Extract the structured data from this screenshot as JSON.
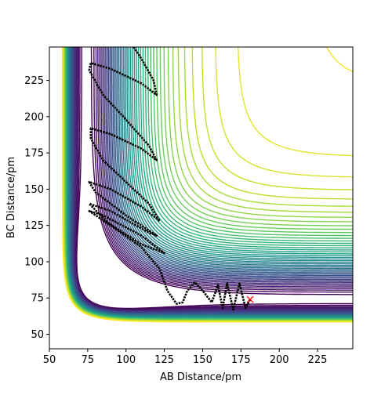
{
  "chart_data": {
    "type": "contour",
    "x_label": "AB Distance/pm",
    "y_label": "BC Distance/pm",
    "xlim": [
      50,
      248
    ],
    "ylim": [
      40,
      248
    ],
    "xticks": [
      50,
      75,
      100,
      125,
      150,
      175,
      200,
      225
    ],
    "yticks": [
      50,
      75,
      100,
      125,
      150,
      175,
      200,
      225
    ],
    "colormap": [
      "#440154",
      "#482878",
      "#3e4989",
      "#31688e",
      "#26828e",
      "#1f9e89",
      "#35b779",
      "#6ece58",
      "#b5de2b",
      "#fde725"
    ],
    "series": [
      {
        "color": "#000000",
        "marker": "dot",
        "x": [
          181,
          178,
          174,
          170,
          166,
          163,
          160,
          156,
          150,
          145,
          140,
          137,
          133,
          127,
          122,
          110,
          90,
          76,
          85,
          110,
          125,
          110,
          88,
          76,
          90,
          115,
          120,
          100,
          80,
          76,
          90,
          110,
          122,
          115,
          100,
          85,
          77,
          77,
          90,
          110,
          120,
          115,
          100,
          85,
          76,
          77,
          90,
          110,
          120,
          118,
          110,
          105
        ],
        "y": [
          74,
          68,
          85,
          67,
          85,
          68,
          84,
          72,
          80,
          86,
          80,
          72,
          71,
          80,
          95,
          110,
          125,
          135,
          132,
          118,
          106,
          112,
          127,
          140,
          135,
          120,
          118,
          132,
          148,
          155,
          150,
          138,
          128,
          140,
          155,
          170,
          185,
          192,
          188,
          178,
          170,
          180,
          198,
          215,
          232,
          237,
          233,
          223,
          215,
          225,
          240,
          248
        ]
      },
      {
        "color": "#ff0000",
        "marker": "x",
        "x": [
          181
        ],
        "y": [
          74
        ]
      }
    ]
  }
}
